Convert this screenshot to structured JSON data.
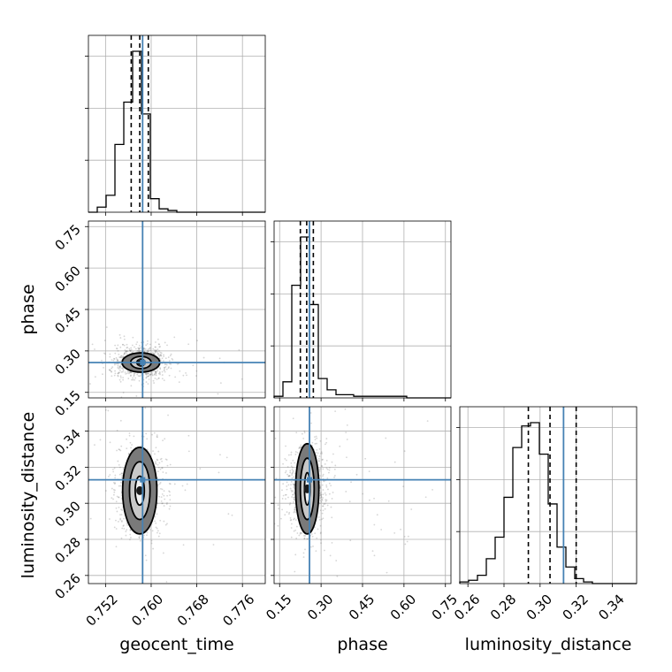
{
  "chart_data": {
    "type": "corner",
    "parameters": [
      "geocent_time",
      "phase",
      "luminosity_distance"
    ],
    "axis_labels": {
      "geocent_time": "geocent_time",
      "phase": "phase",
      "luminosity_distance": "luminosity_distance"
    },
    "ranges": {
      "geocent_time": [
        0.749,
        0.78
      ],
      "phase": [
        0.13,
        0.77
      ],
      "luminosity_distance": [
        0.2555,
        0.3535
      ]
    },
    "ticks": {
      "geocent_time": [
        0.752,
        0.76,
        0.768,
        0.776
      ],
      "phase": [
        0.15,
        0.3,
        0.45,
        0.6,
        0.75
      ],
      "luminosity_distance": [
        0.26,
        0.28,
        0.3,
        0.32,
        0.34
      ]
    },
    "tick_labels": {
      "geocent_time": [
        "0.752",
        "0.760",
        "0.768",
        "0.776"
      ],
      "phase": [
        "0.15",
        "0.30",
        "0.45",
        "0.60",
        "0.75"
      ],
      "luminosity_distance": [
        "0.26",
        "0.28",
        "0.30",
        "0.32",
        "0.34"
      ]
    },
    "truths": {
      "geocent_time": 0.7585,
      "phase": 0.258,
      "luminosity_distance": 0.313
    },
    "quantiles": {
      "geocent_time": [
        0.7565,
        0.758,
        0.7595
      ],
      "phase": [
        0.225,
        0.248,
        0.272
      ],
      "luminosity_distance": [
        0.2935,
        0.3055,
        0.32
      ]
    },
    "histograms": {
      "geocent_time": {
        "bin_start": 0.749,
        "bin_width": 0.00155,
        "counts": [
          0,
          3,
          10,
          40,
          65,
          95,
          58,
          8,
          2,
          1,
          0,
          0,
          0,
          0,
          0,
          0,
          0,
          0,
          0,
          0
        ]
      },
      "phase": {
        "bin_start": 0.13,
        "bin_width": 0.032,
        "counts": [
          1,
          10,
          70,
          100,
          58,
          12,
          5,
          2,
          2,
          1,
          1,
          1,
          1,
          1,
          1,
          0,
          0,
          0,
          0,
          0
        ]
      },
      "luminosity_distance": {
        "bin_start": 0.2555,
        "bin_width": 0.0049,
        "counts": [
          1,
          2,
          5,
          15,
          28,
          52,
          82,
          95,
          97,
          78,
          48,
          22,
          10,
          3,
          1,
          0,
          0,
          0,
          0,
          0
        ]
      }
    },
    "joint": [
      {
        "x": "geocent_time",
        "y": "phase",
        "center": [
          0.7582,
          0.258
        ],
        "contour_half_widths": [
          [
            0.0007,
            0.012
          ],
          [
            0.0018,
            0.022
          ],
          [
            0.0033,
            0.035
          ]
        ],
        "spread": [
          0.0022,
          0.03
        ]
      },
      {
        "x": "geocent_time",
        "y": "luminosity_distance",
        "center": [
          0.758,
          0.307
        ],
        "contour_half_widths": [
          [
            0.0008,
            0.008
          ],
          [
            0.0018,
            0.016
          ],
          [
            0.003,
            0.024
          ]
        ],
        "spread": [
          0.002,
          0.012
        ]
      },
      {
        "x": "phase",
        "y": "luminosity_distance",
        "center": [
          0.25,
          0.308
        ],
        "contour_half_widths": [
          [
            0.01,
            0.009
          ],
          [
            0.025,
            0.017
          ],
          [
            0.042,
            0.025
          ]
        ],
        "spread": [
          0.035,
          0.012
        ]
      }
    ],
    "grid": true,
    "colors": {
      "truth": "#4682b4",
      "contour": "#000000",
      "sample": "#6d6d6d",
      "quantile": "#000000"
    }
  }
}
